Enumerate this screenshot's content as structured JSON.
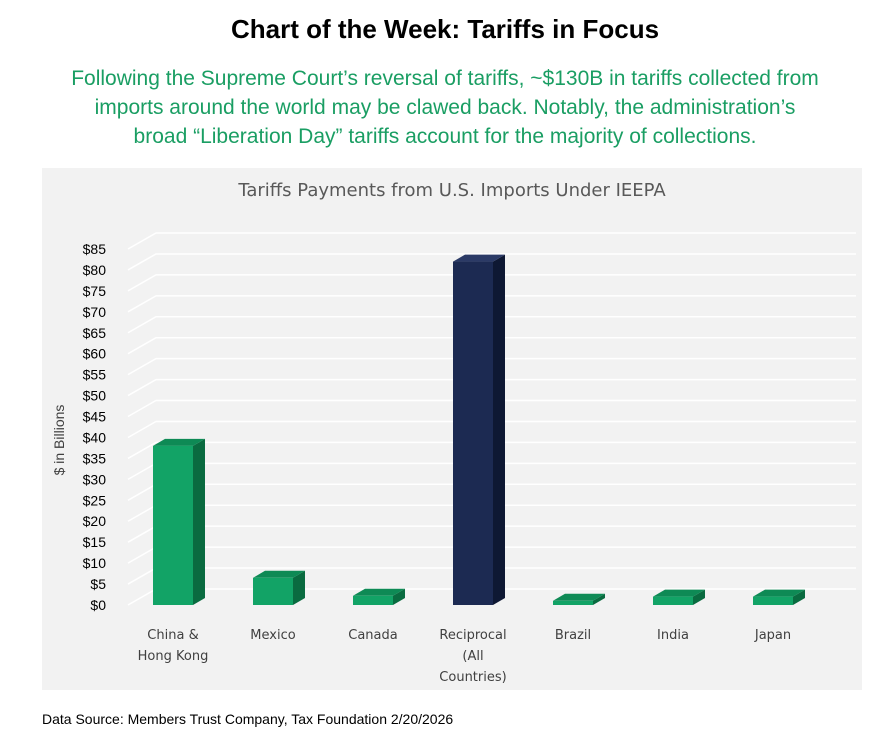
{
  "header": {
    "title": "Chart of the Week: Tariffs in Focus",
    "subtitle_lines": [
      "Following the Supreme Court’s reversal of tariffs, ~$130B in tariffs collected from",
      "imports around the world may be clawed back.  Notably, the administration’s",
      "broad “Liberation Day” tariffs account for the majority of collections."
    ]
  },
  "footer": {
    "source": "Data Source: Members Trust Company, Tax Foundation 2/20/2026"
  },
  "colors": {
    "subtitle": "#1a9e63",
    "green_front": "#12a366",
    "green_side": "#0a6b40",
    "green_top": "#0e8a55",
    "navy_front": "#1c2a52",
    "navy_side": "#0e1833",
    "navy_top": "#2b3a66",
    "panel_bg": "#f2f2f2",
    "grid": "#ffffff"
  },
  "chart_data": {
    "type": "bar",
    "title": "Tariffs Payments from U.S. Imports Under IEEPA",
    "ylabel": "$ in Billions",
    "xlabel": "",
    "ylim": [
      0,
      85
    ],
    "ytick_step": 5,
    "y_tick_labels": [
      "$0",
      "$5",
      "$10",
      "$15",
      "$20",
      "$25",
      "$30",
      "$35",
      "$40",
      "$45",
      "$50",
      "$55",
      "$60",
      "$65",
      "$70",
      "$75",
      "$80",
      "$85"
    ],
    "categories": [
      [
        "China &",
        "Hong Kong"
      ],
      [
        "Mexico"
      ],
      [
        "Canada"
      ],
      [
        "Reciprocal",
        "(All",
        "Countries)"
      ],
      [
        "Brazil"
      ],
      [
        "India"
      ],
      [
        "Japan"
      ]
    ],
    "values": [
      38,
      6.5,
      2.2,
      82,
      1,
      2,
      2
    ],
    "bar_colors": [
      "green",
      "green",
      "green",
      "navy",
      "green",
      "green",
      "green"
    ],
    "gridlines": true,
    "legend": "none"
  }
}
